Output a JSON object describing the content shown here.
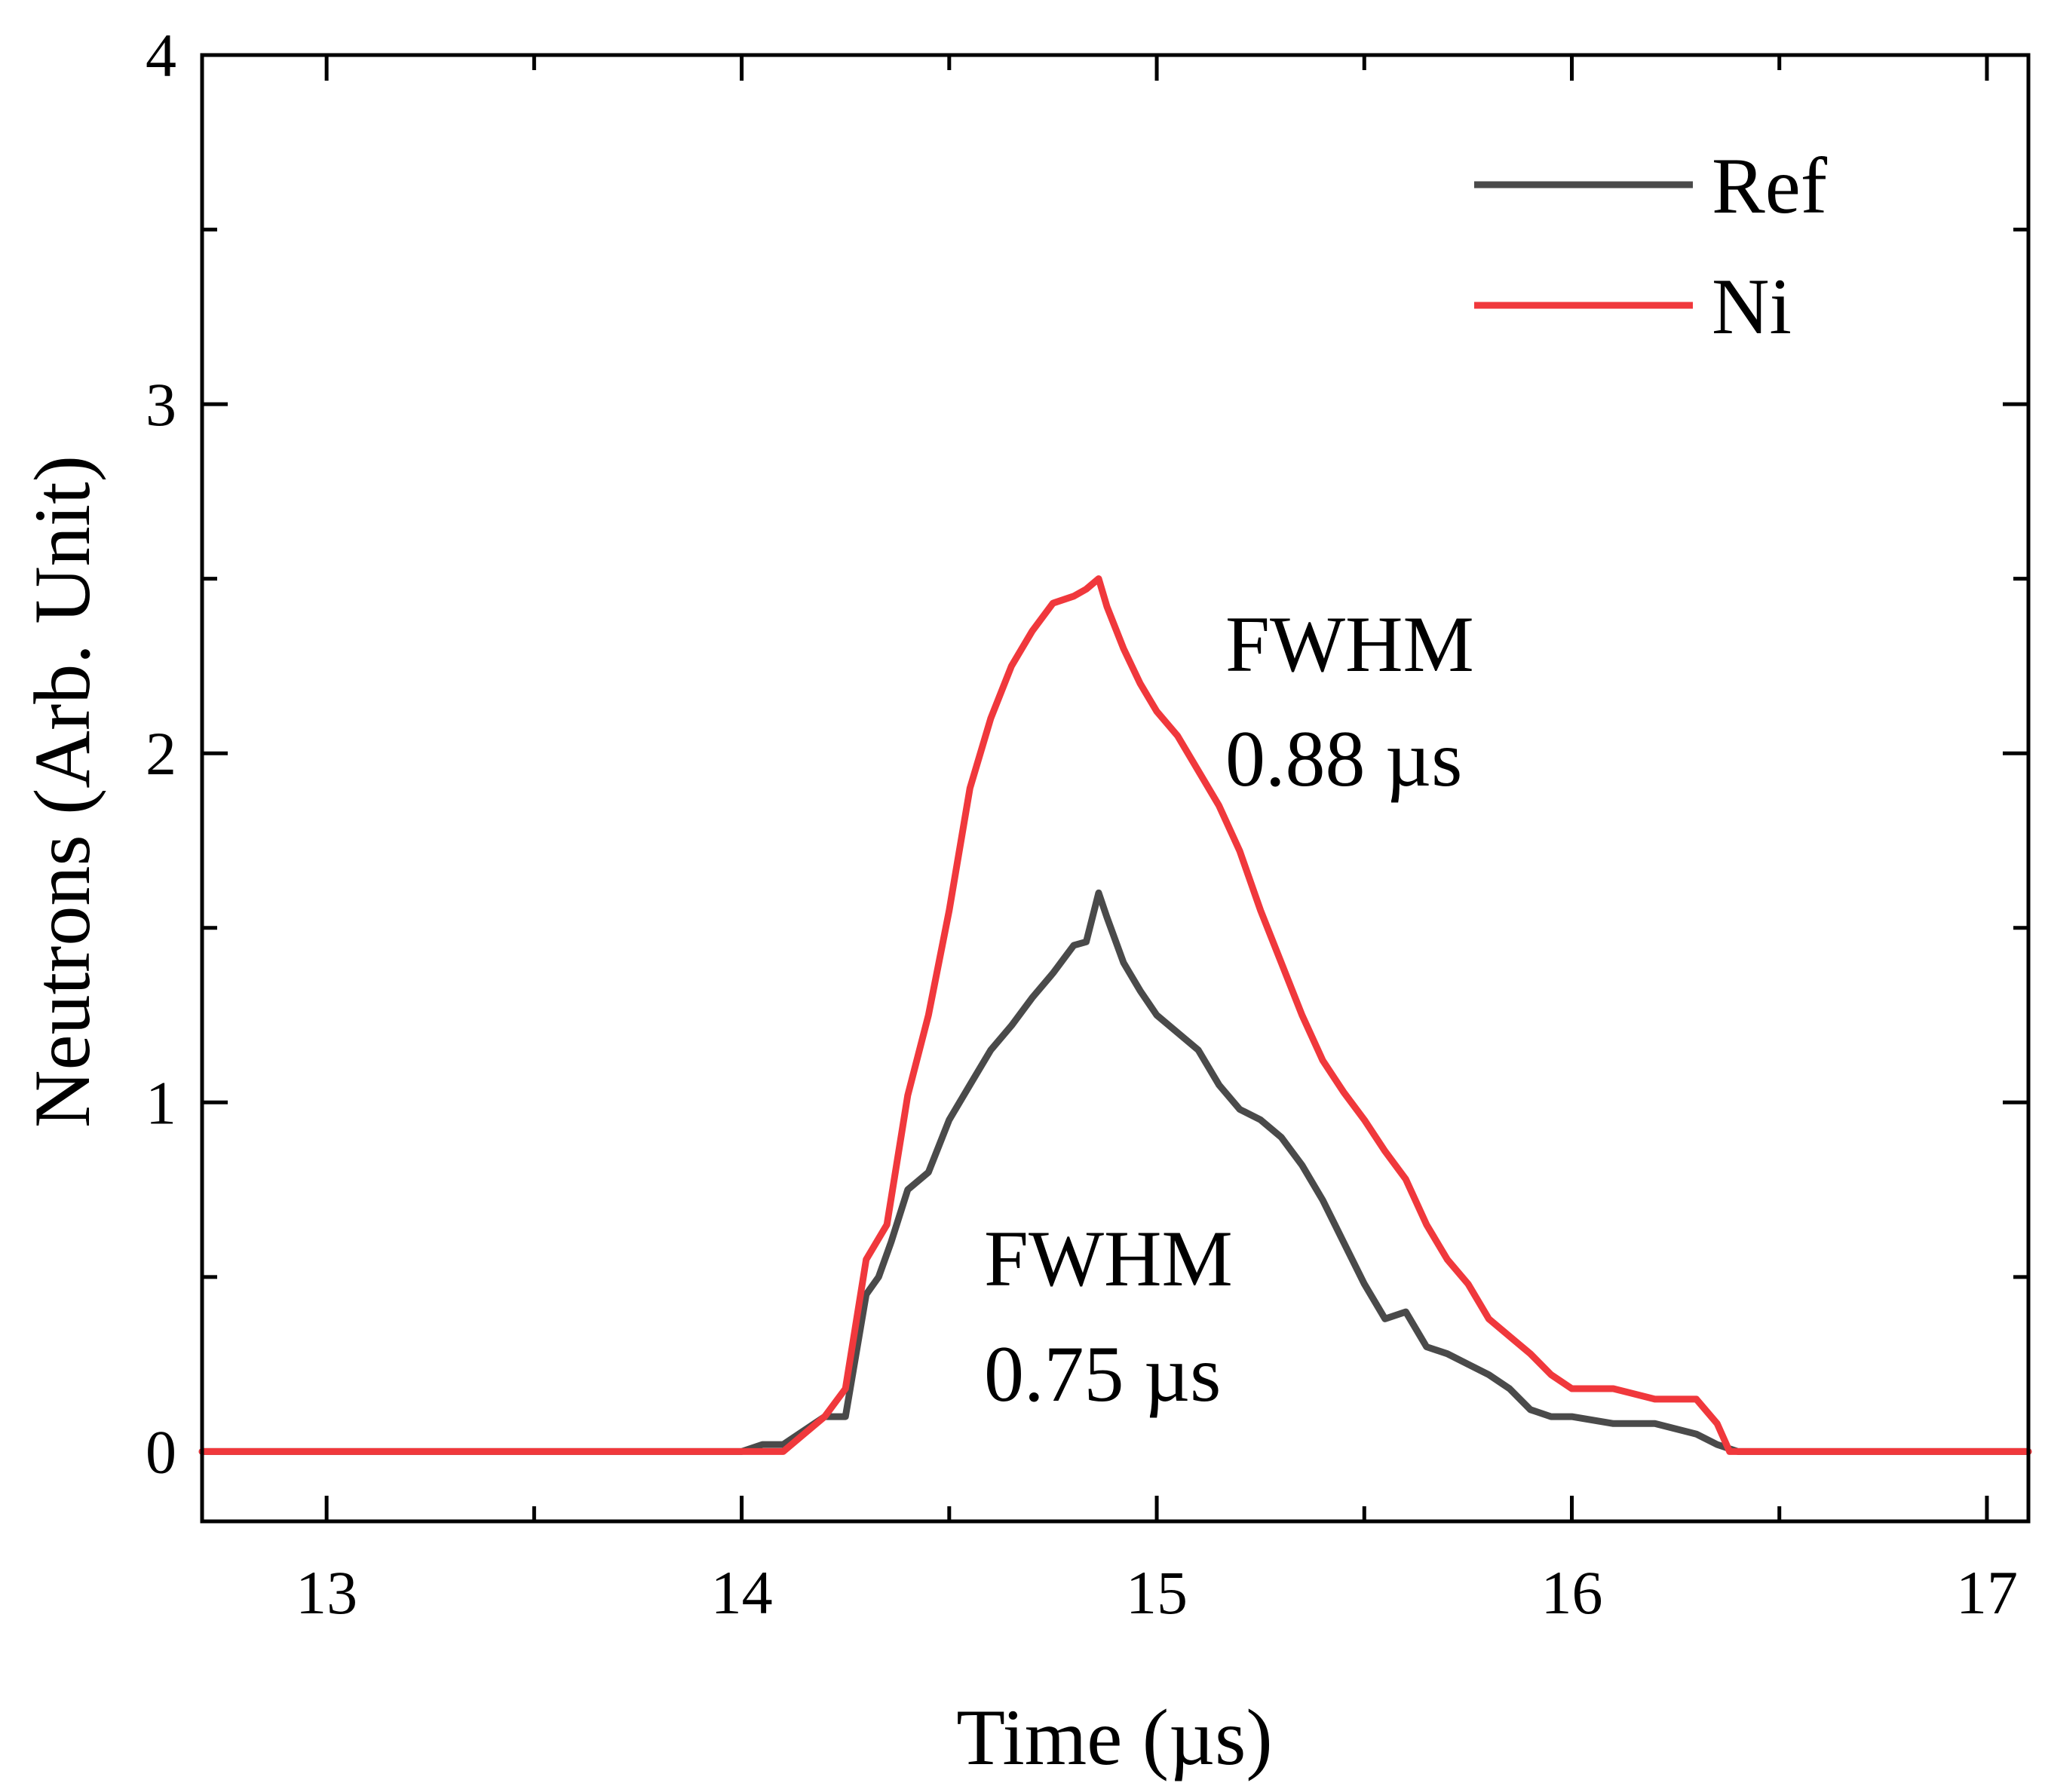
{
  "chart_data": {
    "type": "line",
    "title": "",
    "xlabel": "Time (µs)",
    "ylabel": "Neutrons (Arb. Unit)",
    "xlim": [
      12.7,
      17.1
    ],
    "ylim": [
      -0.2,
      4
    ],
    "xticks": [
      13,
      14,
      15,
      16,
      17
    ],
    "xticks_minor": [
      13.5,
      14.5,
      15.5,
      16.5
    ],
    "yticks": [
      0,
      1,
      2,
      3,
      4
    ],
    "yticks_minor": [
      0.5,
      1.5,
      2.5,
      3.5
    ],
    "grid": false,
    "legend_position": "top-right",
    "series": [
      {
        "name": "Ref",
        "color": "#4a4a4a",
        "x": [
          12.7,
          14.0,
          14.05,
          14.1,
          14.2,
          14.25,
          14.3,
          14.33,
          14.36,
          14.4,
          14.45,
          14.5,
          14.55,
          14.6,
          14.65,
          14.7,
          14.75,
          14.8,
          14.83,
          14.86,
          14.88,
          14.92,
          14.96,
          15.0,
          15.05,
          15.1,
          15.15,
          15.2,
          15.25,
          15.3,
          15.35,
          15.4,
          15.45,
          15.5,
          15.55,
          15.6,
          15.65,
          15.7,
          15.75,
          15.8,
          15.85,
          15.9,
          15.95,
          16.0,
          16.1,
          16.2,
          16.3,
          16.35,
          16.4,
          17.1
        ],
        "y": [
          0,
          0,
          0.02,
          0.02,
          0.1,
          0.1,
          0.45,
          0.5,
          0.6,
          0.75,
          0.8,
          0.95,
          1.05,
          1.15,
          1.22,
          1.3,
          1.37,
          1.45,
          1.46,
          1.6,
          1.53,
          1.4,
          1.32,
          1.25,
          1.2,
          1.15,
          1.05,
          0.98,
          0.95,
          0.9,
          0.82,
          0.72,
          0.6,
          0.48,
          0.38,
          0.4,
          0.3,
          0.28,
          0.25,
          0.22,
          0.18,
          0.12,
          0.1,
          0.1,
          0.08,
          0.08,
          0.05,
          0.02,
          0,
          0
        ]
      },
      {
        "name": "Ni",
        "color": "#f0383c",
        "x": [
          12.7,
          14.1,
          14.15,
          14.2,
          14.25,
          14.3,
          14.35,
          14.4,
          14.45,
          14.5,
          14.55,
          14.6,
          14.65,
          14.7,
          14.75,
          14.8,
          14.83,
          14.86,
          14.88,
          14.92,
          14.96,
          15.0,
          15.05,
          15.1,
          15.15,
          15.2,
          15.25,
          15.3,
          15.35,
          15.4,
          15.45,
          15.5,
          15.55,
          15.6,
          15.65,
          15.7,
          15.75,
          15.8,
          15.85,
          15.9,
          15.95,
          16.0,
          16.1,
          16.2,
          16.3,
          16.35,
          16.38,
          17.1
        ],
        "y": [
          0,
          0,
          0.05,
          0.1,
          0.18,
          0.55,
          0.65,
          1.02,
          1.25,
          1.55,
          1.9,
          2.1,
          2.25,
          2.35,
          2.43,
          2.45,
          2.47,
          2.5,
          2.42,
          2.3,
          2.2,
          2.12,
          2.05,
          1.95,
          1.85,
          1.72,
          1.55,
          1.4,
          1.25,
          1.12,
          1.03,
          0.95,
          0.86,
          0.78,
          0.65,
          0.55,
          0.48,
          0.38,
          0.33,
          0.28,
          0.22,
          0.18,
          0.18,
          0.15,
          0.15,
          0.08,
          0,
          0
        ]
      }
    ],
    "annotations": [
      {
        "lines": [
          "FWHM",
          "0.88 µs"
        ],
        "color": "#ff0000"
      },
      {
        "lines": [
          "FWHM",
          "0.75 µs"
        ],
        "color": "#000000"
      }
    ]
  }
}
